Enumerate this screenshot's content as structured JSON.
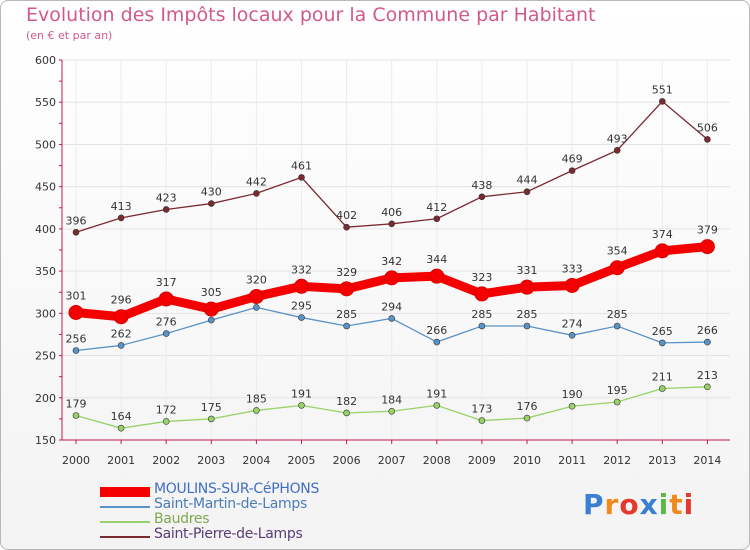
{
  "header": {
    "title": "Evolution des Impôts locaux pour la Commune par Habitant",
    "subtitle": "(en € et par an)"
  },
  "logo": {
    "text": "Proxiti"
  },
  "colors": {
    "title": "#d05a8c",
    "axis": "#c2185b",
    "grid": "#e2e2e2"
  },
  "chart_data": {
    "type": "line",
    "title": "Evolution des Impôts locaux pour la Commune par Habitant",
    "subtitle": "(en € et par an)",
    "x": [
      "2000",
      "2001",
      "2002",
      "2003",
      "2004",
      "2005",
      "2006",
      "2007",
      "2008",
      "2009",
      "2010",
      "2011",
      "2012",
      "2013",
      "2014"
    ],
    "ylim": [
      150,
      600
    ],
    "yticks": [
      150,
      200,
      250,
      300,
      350,
      400,
      450,
      500,
      550,
      600
    ],
    "grid": true,
    "legend": "bottom-left",
    "series": [
      {
        "name": "MOULINS-SUR-CéPHONS",
        "color": "#f40000",
        "legend_color": "#3f6fc5",
        "style": "thick",
        "values": [
          301,
          296,
          317,
          305,
          320,
          332,
          329,
          342,
          344,
          323,
          331,
          333,
          354,
          374,
          379
        ]
      },
      {
        "name": "Saint-Martin-de-Lamps",
        "color": "#5a93c8",
        "legend_color": "#4a7db8",
        "style": "thin",
        "values": [
          256,
          262,
          276,
          292,
          307,
          295,
          285,
          294,
          266,
          285,
          285,
          274,
          285,
          265,
          266
        ]
      },
      {
        "name": "Baudres",
        "color": "#97d167",
        "legend_color": "#7ea84f",
        "style": "thin",
        "values": [
          179,
          164,
          172,
          175,
          185,
          191,
          182,
          184,
          191,
          173,
          176,
          190,
          195,
          211,
          213
        ]
      },
      {
        "name": "Saint-Pierre-de-Lamps",
        "color": "#7b2a31",
        "legend_color": "#5a3d75",
        "style": "thin",
        "values": [
          396,
          413,
          423,
          430,
          442,
          461,
          402,
          406,
          412,
          438,
          444,
          469,
          493,
          551,
          506
        ]
      }
    ],
    "data_labels": {
      "MOULINS-SUR-CéPHONS": [
        "301",
        "296",
        "317",
        "305",
        "320",
        "332",
        "329",
        "342",
        "344",
        "323",
        "331",
        "333",
        "354",
        "374",
        "379"
      ],
      "Saint-Martin-de-Lamps": [
        "256",
        "262",
        "276",
        "292",
        "307",
        "295",
        "285",
        "294",
        "266",
        "285",
        "285",
        "274",
        "285",
        "265",
        "266"
      ],
      "Baudres": [
        "179",
        "164",
        "172",
        "175",
        "185",
        "191",
        "182",
        "184",
        "191",
        "173",
        "176",
        "190",
        "195",
        "211",
        "213"
      ],
      "Saint-Pierre-de-Lamps": [
        "396",
        "413",
        "423",
        "430",
        "442",
        "461",
        "402",
        "406",
        "412",
        "438",
        "444",
        "469",
        "493",
        "551",
        "506"
      ]
    },
    "label_visibility": {
      "Saint-Martin-de-Lamps": [
        true,
        true,
        true,
        false,
        false,
        true,
        true,
        true,
        true,
        true,
        true,
        true,
        true,
        true,
        true
      ]
    }
  }
}
